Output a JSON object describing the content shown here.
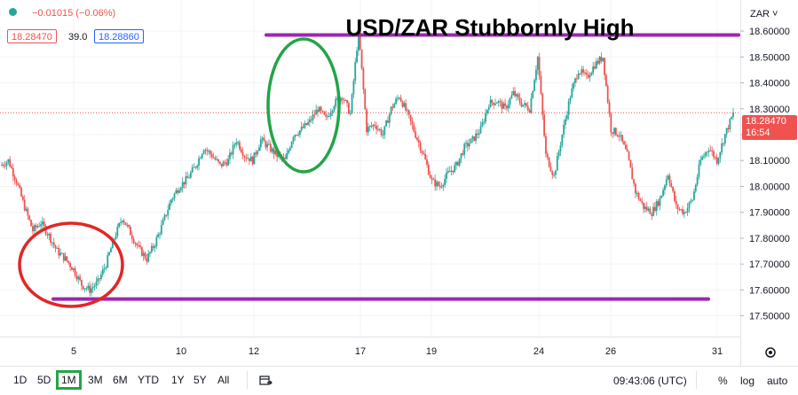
{
  "header": {
    "change_text": "−0.01015 (−0.06%)",
    "bid_price": "18.28470",
    "spread": "39.0",
    "ask_price": "18.28860"
  },
  "price_axis": {
    "currency_label": "ZAR ˅",
    "current_price_label": "18.28470",
    "countdown_label": "16:54"
  },
  "chart_data": {
    "type": "candlestick",
    "title": "USD/ZAR Stubbornly High",
    "ylim": [
      17.42,
      18.72
    ],
    "y_ticks": [
      17.5,
      17.6,
      17.7,
      17.8,
      17.9,
      18.0,
      18.1,
      18.2,
      18.3,
      18.4,
      18.5,
      18.6
    ],
    "y_tick_labels": [
      "17.50000",
      "17.60000",
      "17.70000",
      "17.80000",
      "17.90000",
      "18.00000",
      "18.10000",
      "18.20000",
      "18.30000",
      "18.40000",
      "18.50000",
      "18.60000"
    ],
    "x_tick_labels": [
      "5",
      "10",
      "12",
      "17",
      "19",
      "24",
      "26",
      "31"
    ],
    "current_price": 18.2847,
    "path_points": [
      18.08,
      18.1,
      18.02,
      17.92,
      17.83,
      17.86,
      17.81,
      17.75,
      17.72,
      17.68,
      17.62,
      17.6,
      17.63,
      17.7,
      17.8,
      17.88,
      17.82,
      17.76,
      17.72,
      17.78,
      17.86,
      17.95,
      18.0,
      18.03,
      18.08,
      18.15,
      18.12,
      18.08,
      18.1,
      18.18,
      18.12,
      18.1,
      18.18,
      18.15,
      18.12,
      18.1,
      18.2,
      18.22,
      18.25,
      18.3,
      18.26,
      18.32,
      18.35,
      18.28,
      18.6,
      18.22,
      18.24,
      18.2,
      18.3,
      18.35,
      18.28,
      18.2,
      18.12,
      18.02,
      18.0,
      18.05,
      18.08,
      18.15,
      18.18,
      18.22,
      18.32,
      18.33,
      18.3,
      18.36,
      18.32,
      18.3,
      18.5,
      18.12,
      18.04,
      18.2,
      18.35,
      18.45,
      18.42,
      18.47,
      18.5,
      18.22,
      18.2,
      18.12,
      17.98,
      17.92,
      17.9,
      17.95,
      18.05,
      17.92,
      17.9,
      17.95,
      18.1,
      18.15,
      18.1,
      18.2,
      18.28
    ],
    "series": [
      {
        "name": "",
        "type": "horizontal_line",
        "y": 18.585,
        "x_range": [
          "12",
          "31"
        ],
        "color": "#9c27b0"
      },
      {
        "name": "",
        "type": "horizontal_line",
        "y": 17.565,
        "x_range": [
          "5",
          "31"
        ],
        "color": "#9c27b0"
      }
    ],
    "annotations": [
      {
        "shape": "ellipse",
        "color": "#e32626",
        "around": "low near 5"
      },
      {
        "shape": "ellipse",
        "color": "#22a548",
        "around": "spike near 12"
      }
    ]
  },
  "toolbar": {
    "timeframes": [
      "1D",
      "5D",
      "1M",
      "3M",
      "6M",
      "YTD",
      "1Y",
      "5Y",
      "All"
    ],
    "selected": "1M",
    "time": "09:43:06 (UTC)",
    "percent": "%",
    "log": "log",
    "auto": "auto"
  },
  "colors": {
    "up": "#26a69a",
    "down": "#ef5350",
    "level_line": "#9c27b0",
    "price_badge": "#ef5350",
    "ask_badge": "#2962ff"
  }
}
